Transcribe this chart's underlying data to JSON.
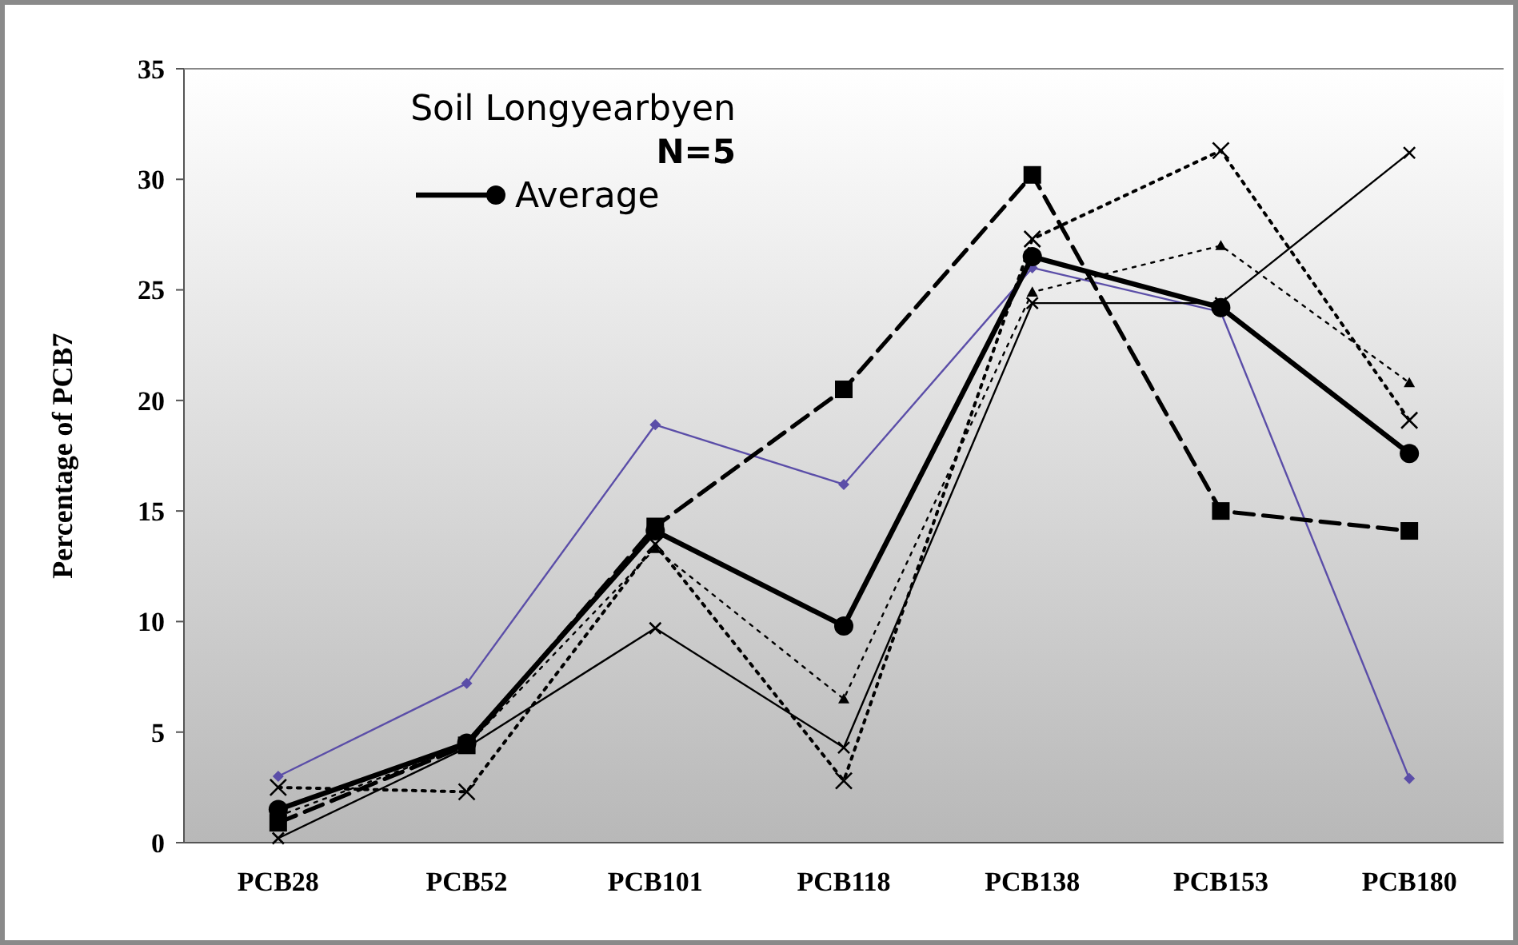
{
  "chart_data": {
    "type": "line",
    "ylabel": "Percentage of PCB7",
    "categories": [
      "PCB28",
      "PCB52",
      "PCB101",
      "PCB118",
      "PCB138",
      "PCB153",
      "PCB180"
    ],
    "ylim": [
      0,
      35
    ],
    "yticks": [
      0,
      5,
      10,
      15,
      20,
      25,
      30,
      35
    ],
    "annotations": [
      "Soil Longyearbyen",
      "N=5"
    ],
    "legend": "top left",
    "grid": false,
    "series": [
      {
        "color": "#5b4ea8",
        "marker": "diamond",
        "line_style": "solid",
        "values": [
          3.0,
          7.2,
          18.9,
          16.2,
          26.0,
          24.0,
          2.9
        ]
      },
      {
        "color": "#000000",
        "marker": "cross",
        "line_style": "solid",
        "values": [
          0.2,
          4.3,
          9.7,
          4.3,
          24.4,
          24.4,
          31.2
        ]
      },
      {
        "color": "#000000",
        "marker": "triangle",
        "line_style": "dotted",
        "values": [
          1.2,
          4.4,
          13.3,
          6.5,
          24.9,
          27.0,
          20.8
        ]
      },
      {
        "color": "#000000",
        "marker": "cross",
        "line_style": "dotted",
        "values": [
          2.5,
          2.3,
          13.5,
          2.8,
          27.3,
          31.3,
          19.1
        ]
      },
      {
        "color": "#000000",
        "marker": "square",
        "line_style": "dashed",
        "values": [
          0.9,
          4.4,
          14.3,
          20.5,
          30.2,
          15.0,
          14.1
        ]
      },
      {
        "name": "Average",
        "color": "#000000",
        "marker": "circle",
        "line_style": "solid",
        "values": [
          1.5,
          4.5,
          14.1,
          9.8,
          26.5,
          24.2,
          17.6
        ]
      }
    ]
  }
}
